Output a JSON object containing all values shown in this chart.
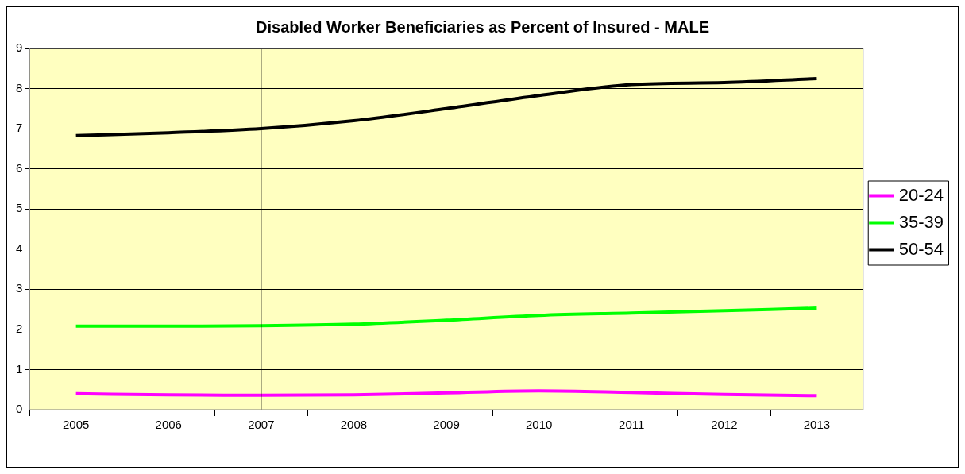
{
  "chart_data": {
    "type": "line",
    "title": "Disabled Worker Beneficiaries as Percent of Insured - MALE",
    "categories": [
      "2005",
      "2006",
      "2007",
      "2008",
      "2009",
      "2010",
      "2011",
      "2012",
      "2013"
    ],
    "series": [
      {
        "name": "20-24",
        "color": "#ff00ff",
        "values": [
          0.4,
          0.37,
          0.36,
          0.37,
          0.42,
          0.47,
          0.43,
          0.38,
          0.35
        ]
      },
      {
        "name": "35-39",
        "color": "#00ff00",
        "values": [
          2.08,
          2.08,
          2.09,
          2.13,
          2.23,
          2.35,
          2.41,
          2.47,
          2.53
        ]
      },
      {
        "name": "50-54",
        "color": "#000000",
        "values": [
          6.83,
          6.9,
          7.0,
          7.2,
          7.5,
          7.83,
          8.1,
          8.15,
          8.25
        ]
      }
    ],
    "ylim": [
      0,
      9
    ],
    "yticks": [
      0,
      1,
      2,
      3,
      4,
      5,
      6,
      7,
      8,
      9
    ],
    "grid": "y",
    "legend": "right",
    "marker": "none",
    "line_style": "solid",
    "ref_lines": [
      {
        "axis": "x",
        "value": "2007",
        "color": "#000000"
      }
    ]
  }
}
